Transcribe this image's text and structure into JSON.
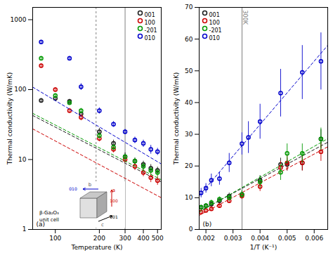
{
  "chart_data": [
    {
      "type": "scatter",
      "xlabel": "Temperature (K)",
      "ylabel": "Thermal conductivity (W/mK)",
      "log": true,
      "xlim": [
        70,
        530
      ],
      "ylim": [
        1,
        1500
      ],
      "xticks": [
        100,
        200,
        300,
        400,
        500
      ],
      "yticks": [
        1,
        10,
        100,
        1000
      ],
      "grid": false,
      "legend": "upper right",
      "series": [
        {
          "name": "001",
          "color": "#1a1a1a",
          "marker": "circle",
          "x": [
            80,
            100,
            125,
            150,
            200,
            250,
            300,
            350,
            400,
            450,
            500
          ],
          "values": [
            70,
            75,
            68,
            45,
            25,
            17,
            11,
            9.5,
            8.5,
            7.5,
            7.0
          ],
          "yerr": [
            5,
            5,
            5,
            4,
            3,
            2,
            1.5,
            1.0,
            1.0,
            1.0,
            0.8
          ],
          "fit_x": [
            70,
            530
          ],
          "fit_values": [
            42.71,
            4.798
          ]
        },
        {
          "name": "100",
          "color": "#cc0000",
          "marker": "circle",
          "x": [
            80,
            100,
            125,
            150,
            200,
            250,
            300,
            350,
            400,
            450,
            500
          ],
          "values": [
            220,
            100,
            50,
            40,
            20,
            14,
            10,
            8.0,
            6.5,
            5.5,
            5.0
          ],
          "yerr": [
            15,
            7,
            4,
            4,
            2,
            1.5,
            1.0,
            1.0,
            0.8,
            0.8,
            0.7
          ],
          "fit_x": [
            70,
            530
          ],
          "fit_values": [
            27.46,
            2.844
          ]
        },
        {
          "name": "-201",
          "color": "#009900",
          "marker": "circle",
          "x": [
            80,
            100,
            125,
            150,
            200,
            250,
            300,
            350,
            400,
            450,
            500
          ],
          "values": [
            280,
            82,
            65,
            50,
            22,
            15,
            11,
            9.5,
            8.0,
            7.0,
            6.5
          ],
          "yerr": [
            20,
            6,
            5,
            4,
            2,
            1.5,
            1.0,
            1.0,
            1.0,
            0.8,
            0.8
          ],
          "fit_x": [
            70,
            530
          ],
          "fit_values": [
            45.76,
            5.14
          ]
        },
        {
          "name": "010",
          "color": "#0000cc",
          "marker": "circle",
          "x": [
            80,
            125,
            150,
            200,
            250,
            300,
            350,
            400,
            450,
            500
          ],
          "values": [
            480,
            280,
            110,
            50,
            32,
            25,
            19,
            17,
            14,
            13
          ],
          "yerr": [
            30,
            20,
            12,
            5,
            3,
            2,
            2,
            2,
            2,
            1.5
          ],
          "fit_x": [
            70,
            530
          ],
          "fit_values": [
            108.66,
            8.651
          ]
        }
      ],
      "vlines": [
        {
          "value": 300,
          "color": "gray"
        },
        {
          "value": 190,
          "color": "gray",
          "line_style": "dotted"
        }
      ],
      "annotations": [
        {
          "text": "(a)"
        },
        {
          "text": "β-Ga₂O₃",
          "color": "black"
        },
        {
          "text": "unit cell",
          "color": "black"
        },
        {
          "text": "a",
          "color": "#cc0000"
        },
        {
          "text": "100",
          "color": "#cc0000"
        },
        {
          "text": "001",
          "color": "black"
        },
        {
          "text": "c",
          "color": "#555555"
        },
        {
          "text": "010",
          "color": "#0000cc"
        },
        {
          "text": "b",
          "color": "#555555"
        }
      ]
    },
    {
      "type": "scatter",
      "xlabel": "1/T (K⁻¹)",
      "ylabel": "Thermal conductivity (W/mK)",
      "xlim": [
        0.00175,
        0.0065
      ],
      "ylim": [
        0,
        70
      ],
      "xticks": [
        0.002,
        0.003,
        0.004,
        0.005,
        0.006
      ],
      "yticks": [
        0,
        10,
        20,
        30,
        40,
        50,
        60,
        70
      ],
      "grid": false,
      "legend": "upper left",
      "series": [
        {
          "name": "001",
          "color": "#1a1a1a",
          "marker": "circle",
          "x": [
            0.00182,
            0.002,
            0.0022,
            0.0025,
            0.00286,
            0.00333,
            0.004,
            0.00476,
            0.005,
            0.00556,
            0.00625
          ],
          "values": [
            7.0,
            7.5,
            8.0,
            9.0,
            10.5,
            11.0,
            15.5,
            20.5,
            20.5,
            21.0,
            28.5
          ],
          "yerr": [
            0.7,
            0.7,
            0.8,
            0.8,
            1.0,
            1.2,
            1.5,
            2.0,
            2.0,
            2.5,
            3.0
          ],
          "fit_x": [
            0.00175,
            0.0065
          ],
          "fit_values": [
            5.682,
            27.48
          ]
        },
        {
          "name": "100",
          "color": "#cc0000",
          "marker": "circle",
          "x": [
            0.00182,
            0.002,
            0.0022,
            0.0025,
            0.00286,
            0.00333,
            0.004,
            0.00476,
            0.005,
            0.00556,
            0.00625
          ],
          "values": [
            5.5,
            6.0,
            6.5,
            7.5,
            9.0,
            10.5,
            13.5,
            19.5,
            21.0,
            21.0,
            24.5
          ],
          "yerr": [
            0.6,
            0.6,
            0.7,
            0.7,
            0.8,
            1.0,
            1.5,
            2.0,
            2.5,
            2.5,
            3.0
          ],
          "fit_x": [
            0.00175,
            0.0065
          ],
          "fit_values": [
            4.436,
            26.05
          ]
        },
        {
          "name": "-201",
          "color": "#009900",
          "marker": "circle",
          "x": [
            0.00182,
            0.002,
            0.0022,
            0.0025,
            0.00286,
            0.00333,
            0.004,
            0.00476,
            0.005,
            0.00556,
            0.00625
          ],
          "values": [
            7.0,
            7.5,
            8.5,
            9.5,
            10.0,
            11.0,
            15.0,
            18.0,
            24.0,
            24.0,
            28.5
          ],
          "yerr": [
            0.7,
            0.7,
            0.8,
            0.8,
            1.0,
            1.2,
            1.8,
            2.5,
            3.0,
            3.0,
            3.5
          ],
          "fit_x": [
            0.00175,
            0.0065
          ],
          "fit_values": [
            5.52,
            28.62
          ]
        },
        {
          "name": "010",
          "color": "#0000cc",
          "marker": "circle",
          "x": [
            0.00182,
            0.002,
            0.0022,
            0.0025,
            0.00286,
            0.00333,
            0.00357,
            0.004,
            0.00476,
            0.00556,
            0.00625
          ],
          "values": [
            11.5,
            13.0,
            15.5,
            16.0,
            21.0,
            27.0,
            29.0,
            34.0,
            43.0,
            49.5,
            53.0
          ],
          "yerr": [
            1.5,
            1.5,
            2.0,
            2.0,
            3.0,
            3.5,
            5.0,
            5.5,
            7.5,
            8.5,
            9.0
          ],
          "fit_x": [
            0.00175,
            0.0065
          ],
          "fit_values": [
            10.62,
            58.04
          ]
        }
      ],
      "vlines": [
        {
          "value": 0.003333,
          "color": "gray",
          "label": "300K"
        }
      ],
      "annotations": [
        {
          "text": "(b)"
        }
      ]
    }
  ]
}
